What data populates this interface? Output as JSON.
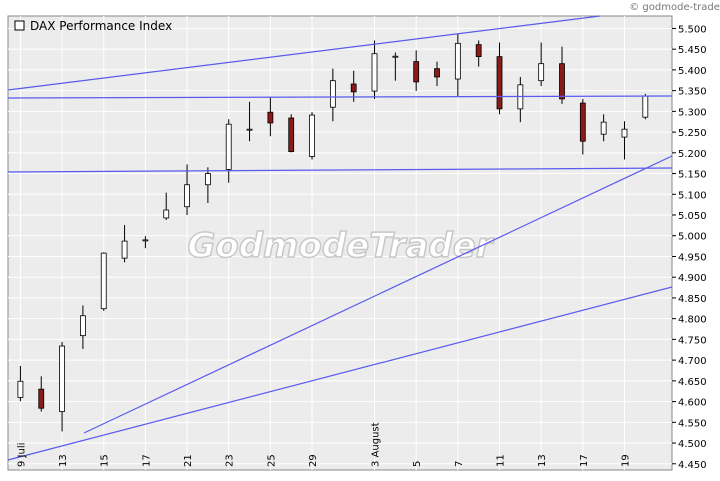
{
  "chart_data": {
    "type": "candlestick",
    "title": "DAX Performance Index",
    "watermark": "GodmodeTrader",
    "copyright": "© godmode-trader.de",
    "categories": [
      "9 Juli",
      null,
      "13",
      null,
      "15",
      null,
      "17",
      null,
      "21",
      null,
      "23",
      null,
      "25",
      null,
      "29",
      null,
      null,
      "3 August",
      null,
      "5",
      null,
      "7",
      null,
      "11",
      null,
      "13",
      null,
      "17",
      null,
      "19",
      null
    ],
    "open": [
      4610,
      4630,
      4576,
      4759,
      4824,
      4946,
      4988,
      5043,
      5070,
      5123,
      5160,
      5255,
      5298,
      5284,
      5191,
      5310,
      5366,
      5349,
      5432,
      5420,
      5403,
      5378,
      5461,
      5432,
      5306,
      5374,
      5415,
      5320,
      5245,
      5238,
      5286
    ],
    "high": [
      4686,
      4661,
      4744,
      4832,
      4960,
      5026,
      4999,
      5104,
      5172,
      5165,
      5281,
      5323,
      5335,
      5293,
      5298,
      5403,
      5398,
      5471,
      5442,
      5447,
      5420,
      5488,
      5471,
      5466,
      5383,
      5466,
      5456,
      5330,
      5293,
      5276,
      5342
    ],
    "low": [
      4601,
      4576,
      4528,
      4727,
      4819,
      4936,
      4970,
      5038,
      5050,
      5079,
      5128,
      5228,
      5240,
      5201,
      5184,
      5276,
      5323,
      5330,
      5374,
      5349,
      5361,
      5335,
      5408,
      5293,
      5274,
      5361,
      5318,
      5196,
      5228,
      5184,
      5281
    ],
    "close": [
      4649,
      4584,
      4734,
      4807,
      4958,
      4987,
      4990,
      5062,
      5123,
      5150,
      5269,
      5257,
      5272,
      5203,
      5291,
      5374,
      5347,
      5439,
      5433,
      5371,
      5383,
      5464,
      5432,
      5306,
      5364,
      5415,
      5330,
      5228,
      5274,
      5257,
      5337
    ],
    "up_color": "#ffffff",
    "down_color": "#8b1a1a",
    "ylim": [
      4435,
      5530
    ],
    "yticks": [
      {
        "value": 4450,
        "label": "4.450"
      },
      {
        "value": 4500,
        "label": "4.500"
      },
      {
        "value": 4550,
        "label": "4.550"
      },
      {
        "value": 4600,
        "label": "4.600"
      },
      {
        "value": 4650,
        "label": "4.650"
      },
      {
        "value": 4700,
        "label": "4.700"
      },
      {
        "value": 4750,
        "label": "4.750"
      },
      {
        "value": 4800,
        "label": "4.800"
      },
      {
        "value": 4850,
        "label": "4.850"
      },
      {
        "value": 4900,
        "label": "4.900"
      },
      {
        "value": 4950,
        "label": "4.950"
      },
      {
        "value": 5000,
        "label": "5.000"
      },
      {
        "value": 5050,
        "label": "5.050"
      },
      {
        "value": 5100,
        "label": "5.100"
      },
      {
        "value": 5150,
        "label": "5.150"
      },
      {
        "value": 5200,
        "label": "5.200"
      },
      {
        "value": 5250,
        "label": "5.250"
      },
      {
        "value": 5300,
        "label": "5.300"
      },
      {
        "value": 5350,
        "label": "5.350"
      },
      {
        "value": 5400,
        "label": "5.400"
      },
      {
        "value": 5450,
        "label": "5.450"
      },
      {
        "value": 5500,
        "label": "5.500"
      }
    ],
    "grid": true
  }
}
